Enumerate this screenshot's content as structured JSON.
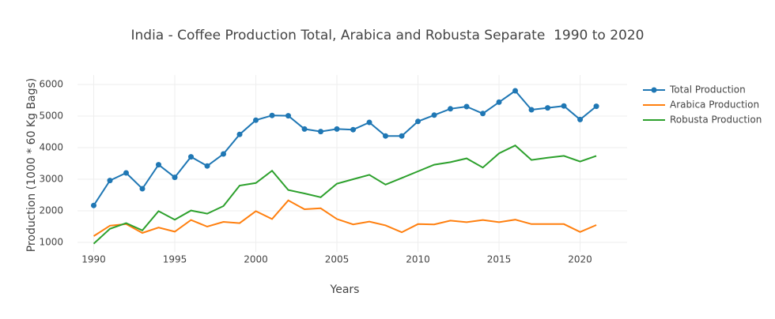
{
  "chart_data": {
    "type": "line",
    "title": "India - Coffee Production Total, Arabica and Robusta Separate  1990 to 2020",
    "x_label": "Years",
    "y_label": "Production (1000 * 60 Kg Bags)",
    "x": [
      1990,
      1991,
      1992,
      1993,
      1994,
      1995,
      1996,
      1997,
      1998,
      1999,
      2000,
      2001,
      2002,
      2003,
      2004,
      2005,
      2006,
      2007,
      2008,
      2009,
      2010,
      2011,
      2012,
      2013,
      2014,
      2015,
      2016,
      2017,
      2018,
      2019,
      2020,
      2021
    ],
    "series": [
      {
        "name": "Total Production",
        "color": "#1f77b4",
        "markers": true,
        "values": [
          2170,
          2960,
          3200,
          2700,
          3460,
          3060,
          3710,
          3420,
          3800,
          4420,
          4870,
          5020,
          5010,
          4590,
          4510,
          4590,
          4570,
          4800,
          4370,
          4370,
          4830,
          5030,
          5230,
          5300,
          5080,
          5440,
          5800,
          5200,
          5260,
          5320,
          4890,
          5310
        ]
      },
      {
        "name": "Arabica Production",
        "color": "#ff7f0e",
        "markers": false,
        "values": [
          1200,
          1530,
          1580,
          1300,
          1470,
          1340,
          1710,
          1500,
          1650,
          1610,
          1990,
          1740,
          2330,
          2050,
          2080,
          1740,
          1570,
          1660,
          1540,
          1320,
          1580,
          1570,
          1690,
          1640,
          1710,
          1640,
          1720,
          1580,
          1580,
          1580,
          1330,
          1550
        ]
      },
      {
        "name": "Robusta Production",
        "color": "#2ca02c",
        "markers": false,
        "values": [
          960,
          1430,
          1610,
          1380,
          1990,
          1720,
          2010,
          1910,
          2150,
          2800,
          2880,
          3270,
          2660,
          2550,
          2430,
          2860,
          3000,
          3140,
          2830,
          3040,
          3250,
          3460,
          3540,
          3660,
          3370,
          3820,
          4070,
          3610,
          3680,
          3740,
          3560,
          3740
        ]
      }
    ],
    "xlim": [
      1989,
      2022.9
    ],
    "xticks": [
      1990,
      1995,
      2000,
      2005,
      2010,
      2015,
      2020
    ],
    "ylim": [
      700,
      6300
    ],
    "yticks": [
      1000,
      2000,
      3000,
      4000,
      5000,
      6000
    ],
    "grid": true,
    "legend": "top-right"
  }
}
